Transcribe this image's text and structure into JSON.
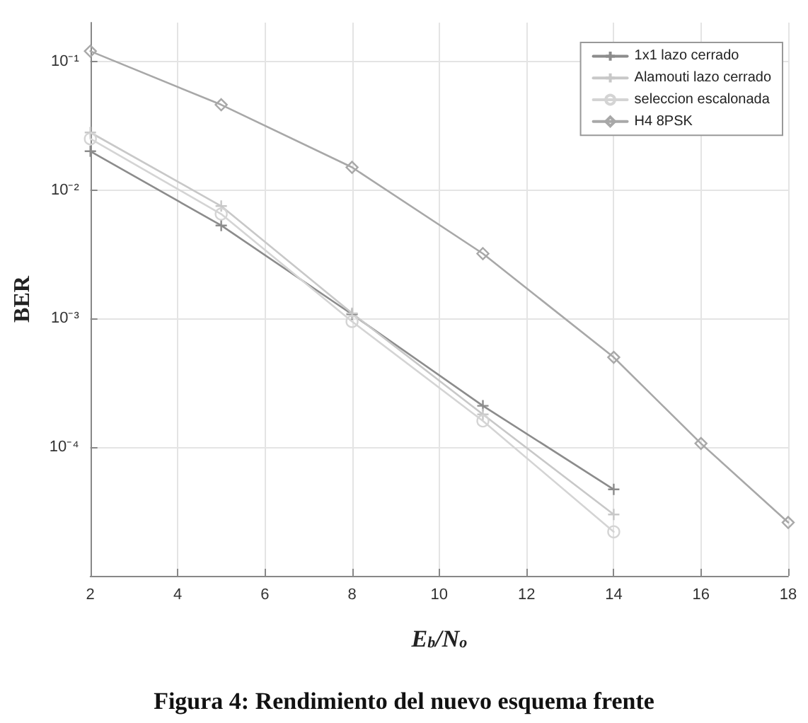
{
  "chart_data": {
    "type": "line",
    "title": "Figura 4: Rendimiento del nuevo esquema frente",
    "xlabel": "E$_{b}$/N$_{o}$",
    "ylabel": "BER",
    "x": [
      2,
      5,
      8,
      11,
      14
    ],
    "series": [
      {
        "name": "1x1 lazo cerrado",
        "color": "#8c8c8c",
        "marker": "cross",
        "values": [
          0.02,
          0.0053,
          0.00108,
          0.00021,
          4.7e-05
        ]
      },
      {
        "name": "Alamouti lazo cerrado",
        "color": "#c8c8c8",
        "marker": "cross",
        "values": [
          0.028,
          0.0075,
          0.0011,
          0.00018,
          3e-05
        ]
      },
      {
        "name": "seleccion escalonada",
        "color": "#d4d4d4",
        "marker": "circle",
        "values": [
          0.025,
          0.0065,
          0.00095,
          0.00016,
          2.2e-05
        ]
      },
      {
        "name": "H4 8PSK",
        "color": "#a8a8a8",
        "marker": "diamond",
        "x": [
          2,
          5,
          8,
          11,
          14,
          16,
          18
        ],
        "values": [
          0.12,
          0.046,
          0.015,
          0.0032,
          0.0005,
          0.000107,
          2.6e-05
        ]
      }
    ],
    "xlim": [
      2,
      18
    ],
    "xticks": [
      2,
      4,
      6,
      8,
      10,
      12,
      14,
      16,
      18
    ],
    "ylim": [
      1e-05,
      0.2
    ],
    "yticks": [
      {
        "value": 1e-05,
        "label": null
      },
      {
        "value": 0.0001,
        "label": "10⁻⁴"
      },
      {
        "value": 0.001,
        "label": "10⁻³"
      },
      {
        "value": 0.01,
        "label": "10⁻²"
      },
      {
        "value": 0.1,
        "label": "10⁻¹"
      }
    ],
    "log": true,
    "grid": true,
    "legend": "top right",
    "line_style": "solid"
  }
}
